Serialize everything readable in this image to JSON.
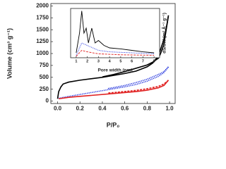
{
  "chart_data": [
    {
      "type": "line",
      "x_label": "P/P₀",
      "y_label": "Volume (cm³ g⁻¹)",
      "xlim": [
        -0.06,
        1.05
      ],
      "ylim": [
        -50,
        2050
      ],
      "xticks": [
        {
          "value": 0,
          "label": "0.0"
        },
        0.2,
        0.4,
        0.6,
        0.8,
        {
          "value": 1,
          "label": "1.0"
        }
      ],
      "yticks": [
        0,
        250,
        500,
        750,
        1000,
        1250,
        1500,
        1750,
        2000
      ],
      "series": [
        {
          "color": "#000000",
          "style": "solid",
          "x": [
            0.0,
            0.01,
            0.03,
            0.05,
            0.1,
            0.2,
            0.3,
            0.4,
            0.5,
            0.6,
            0.7,
            0.8,
            0.85,
            0.9,
            0.95,
            0.98,
            0.99
          ],
          "values": [
            50,
            200,
            300,
            360,
            400,
            440,
            470,
            500,
            540,
            580,
            630,
            720,
            800,
            950,
            1300,
            1650,
            1800
          ]
        },
        {
          "color": "#000000",
          "style": "solid",
          "x": [
            0.99,
            0.97,
            0.95,
            0.92,
            0.9,
            0.85,
            0.8,
            0.6,
            0.5,
            0.4
          ],
          "values": [
            1800,
            1500,
            1200,
            1000,
            900,
            820,
            760,
            620,
            560,
            510
          ]
        },
        {
          "color": "#2233dd",
          "style": "dotted",
          "x": [
            0.01,
            0.1,
            0.2,
            0.3,
            0.4,
            0.5,
            0.6,
            0.7,
            0.8,
            0.9,
            0.95,
            0.99
          ],
          "values": [
            60,
            100,
            140,
            180,
            220,
            260,
            300,
            350,
            420,
            520,
            600,
            720
          ]
        },
        {
          "color": "#2233dd",
          "style": "dotted",
          "x": [
            0.99,
            0.95,
            0.9,
            0.8,
            0.7,
            0.6,
            0.5,
            0.45
          ],
          "values": [
            720,
            620,
            560,
            460,
            390,
            330,
            285,
            265
          ]
        },
        {
          "color": "#e02020",
          "style": "solid",
          "x": [
            0.01,
            0.1,
            0.3,
            0.5,
            0.7,
            0.8,
            0.9,
            0.95,
            0.99
          ],
          "values": [
            50,
            80,
            120,
            160,
            200,
            230,
            280,
            330,
            440
          ]
        },
        {
          "color": "#e02020",
          "style": "dashed",
          "x": [
            0.99,
            0.95,
            0.9,
            0.8,
            0.7,
            0.5,
            0.45
          ],
          "values": [
            440,
            360,
            310,
            260,
            225,
            180,
            170
          ]
        }
      ]
    },
    {
      "type": "line",
      "x_label": "Pore width (nm)",
      "y_label": "dS/dW (m² Å⁻¹ g⁻¹)",
      "xlim": [
        0.5,
        8.5
      ],
      "ylim": [
        0,
        10
      ],
      "xticks": [
        1,
        2,
        3,
        4,
        5,
        6,
        7,
        8
      ],
      "series": [
        {
          "color": "#000000",
          "style": "solid",
          "x": [
            1.0,
            1.3,
            1.5,
            1.7,
            1.9,
            2.1,
            2.4,
            2.7,
            3.0,
            3.5,
            4,
            5,
            6,
            7,
            8
          ],
          "values": [
            1,
            5,
            9.5,
            5,
            6,
            3,
            6,
            3,
            3.5,
            2.5,
            2,
            1.8,
            1.5,
            1.2,
            1
          ]
        },
        {
          "color": "#2233dd",
          "style": "dotted",
          "x": [
            1,
            1.5,
            2,
            2.5,
            3,
            4,
            6,
            8
          ],
          "values": [
            0.5,
            3,
            2.5,
            2,
            1.5,
            1.2,
            1,
            0.8
          ]
        },
        {
          "color": "#e02020",
          "style": "dashed",
          "x": [
            1,
            1.5,
            2,
            3,
            5,
            8
          ],
          "values": [
            0.3,
            1.5,
            1.2,
            0.8,
            0.6,
            0.5
          ]
        }
      ]
    }
  ]
}
